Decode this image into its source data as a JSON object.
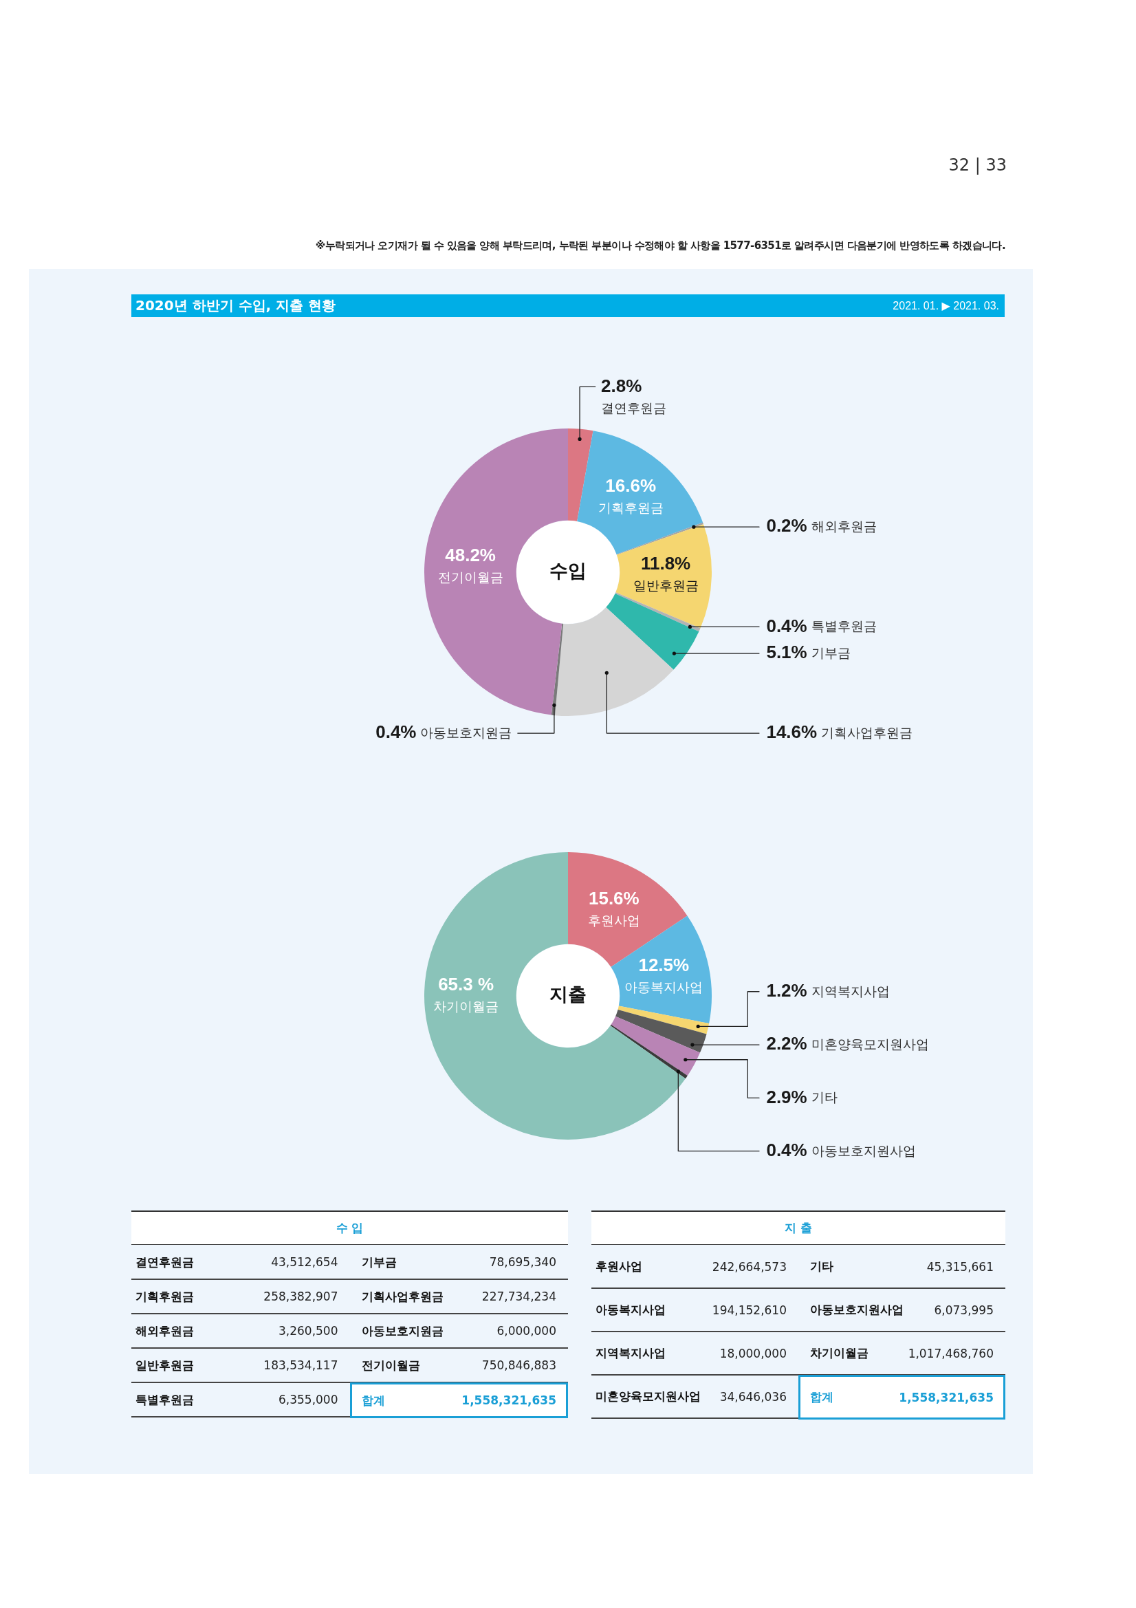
{
  "chart_data": [
    {
      "type": "other",
      "title": "2020년 하반기 수입, 지출 현황",
      "subtitle": "2021. 01. ▶ 2021. 03.",
      "annotations": [
        "※누락되거나 오기재가 될 수 있음을 양해 부탁드리며, 누락된 부분이나 수정해야 할 사항을 1577-6351로 알려주시면 다음분기에 반영하도록 하겠습니다.",
        "32 | 33"
      ]
    },
    {
      "type": "donut",
      "title": "수입",
      "categories": [
        "결연후원금",
        "기획후원금",
        "해외후원금",
        "일반후원금",
        "특별후원금",
        "기부금",
        "기획사업후원금",
        "아동보호지원금",
        "전기이월금"
      ],
      "values": [
        2.8,
        16.6,
        0.2,
        11.8,
        0.4,
        5.1,
        14.6,
        0.4,
        48.2
      ],
      "colors": [
        "#dc7783",
        "#5db9e2",
        "#a3a3a3",
        "#f5d670",
        "#b3b3b3",
        "#2fb8ac",
        "#d5d5d5",
        "#7a7a7a",
        "#b984b5"
      ],
      "value_labels": [
        "2.8%",
        "16.6%",
        "0.2%",
        "11.8%",
        "0.4%",
        "5.1%",
        "14.6%",
        "0.4%",
        "48.2%"
      ]
    },
    {
      "type": "donut",
      "title": "지출",
      "categories": [
        "후원사업",
        "아동복지사업",
        "지역복지사업",
        "미혼양육모지원사업",
        "기타",
        "아동보호지원사업",
        "차기이월금"
      ],
      "values": [
        15.6,
        12.5,
        1.2,
        2.2,
        2.9,
        0.4,
        65.3
      ],
      "colors": [
        "#dc7783",
        "#5db9e2",
        "#f5d670",
        "#5a5a5a",
        "#b984b5",
        "#3a3a3a",
        "#8ac3b9"
      ],
      "value_labels": [
        "15.6%",
        "12.5%",
        "1.2%",
        "2.2%",
        "2.9%",
        "0.4%",
        "65.3 %"
      ]
    },
    {
      "type": "other",
      "title": "수 입",
      "categories": [
        "결연후원금",
        "기획후원금",
        "해외후원금",
        "일반후원금",
        "특별후원금",
        "기부금",
        "기획사업후원금",
        "아동보호지원금",
        "전기이월금"
      ],
      "value_labels": [
        "43,512,654",
        "258,382,907",
        "3,260,500",
        "183,534,117",
        "6,355,000",
        "78,695,340",
        "227,734,234",
        "6,000,000",
        "750,846,883"
      ],
      "annotations": [
        "합계",
        "1,558,321,635"
      ]
    },
    {
      "type": "other",
      "title": "지 출",
      "categories": [
        "후원사업",
        "아동복지사업",
        "지역복지사업",
        "미혼양육모지원사업",
        "기타",
        "아동보호지원사업",
        "차기이월금"
      ],
      "value_labels": [
        "242,664,573",
        "194,152,610",
        "18,000,000",
        "34,646,036",
        "45,315,661",
        "6,073,995",
        "1,017,468,760"
      ],
      "annotations": [
        "합계",
        "1,558,321,635"
      ]
    }
  ]
}
